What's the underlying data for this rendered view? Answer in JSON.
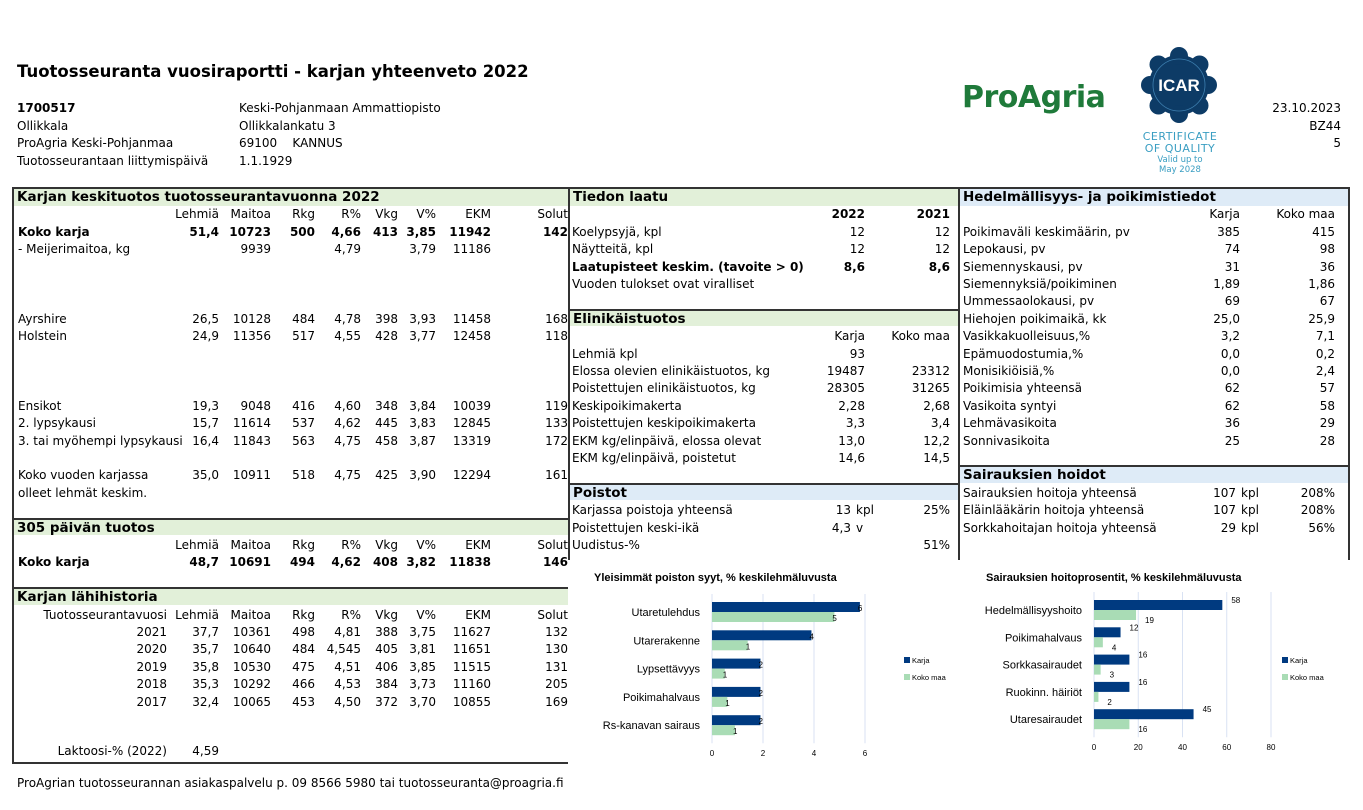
{
  "header": {
    "title": "Tuotosseuranta vuosiraportti - karjan yhteenveto 2022",
    "herd_id": "1700517",
    "farm_name": "Ollikkala",
    "organization": "ProAgria Keski-Pohjanmaa",
    "join_label": "Tuotosseurantaan liittymispäivä",
    "owner": "Keski-Pohjanmaan Ammattiopisto",
    "street": "Ollikkalankatu 3",
    "postal": "69100    KANNUS",
    "join_date": "1.1.1929",
    "date": "23.10.2023",
    "code": "BZ44",
    "page": "5",
    "logo_text": "ProAgria",
    "icar_text": "ICAR",
    "icar_cert": [
      "CERTIFICATE",
      "OF QUALITY",
      "Valid up to",
      "May 2028"
    ]
  },
  "herd_average": {
    "title": "Karjan keskituotos tuotosseurantavuonna 2022",
    "rows": [
      [
        "",
        "Lehmiä",
        "Maitoa",
        "Rkg",
        "R%",
        "Vkg",
        "V%",
        "EKM",
        "Solut"
      ],
      [
        "Koko karja",
        "51,4",
        "10723",
        "500",
        "4,66",
        "413",
        "3,85",
        "11942",
        "142"
      ],
      [
        "- Meijerimaitoa, kg",
        "",
        "9939",
        "",
        "4,79",
        "",
        "3,79",
        "11186",
        ""
      ],
      [
        "Ayrshire",
        "26,5",
        "10128",
        "484",
        "4,78",
        "398",
        "3,93",
        "11458",
        "168"
      ],
      [
        "Holstein",
        "24,9",
        "11356",
        "517",
        "4,55",
        "428",
        "3,77",
        "12458",
        "118"
      ],
      [
        "Ensikot",
        "19,3",
        "9048",
        "416",
        "4,60",
        "348",
        "3,84",
        "10039",
        "119"
      ],
      [
        "2. lypsykausi",
        "15,7",
        "11614",
        "537",
        "4,62",
        "445",
        "3,83",
        "12845",
        "133"
      ],
      [
        "3. tai myöhempi lypsykausi",
        "16,4",
        "11843",
        "563",
        "4,75",
        "458",
        "3,87",
        "13319",
        "172"
      ],
      [
        "Koko vuoden karjassa",
        "35,0",
        "10911",
        "518",
        "4,75",
        "425",
        "3,90",
        "12294",
        "161"
      ],
      [
        "olleet lehmät keskim.",
        "",
        "",
        "",
        "",
        "",
        "",
        "",
        ""
      ]
    ]
  },
  "production_305": {
    "title": "305 päivän tuotos",
    "rows": [
      [
        "",
        "Lehmiä",
        "Maitoa",
        "Rkg",
        "R%",
        "Vkg",
        "V%",
        "EKM",
        "Solut"
      ],
      [
        "Koko karja",
        "48,7",
        "10691",
        "494",
        "4,62",
        "408",
        "3,82",
        "11838",
        "146"
      ]
    ]
  },
  "history": {
    "title": "Karjan lähihistoria",
    "rows": [
      [
        "Tuotosseurantavuosi",
        "Lehmiä",
        "Maitoa",
        "Rkg",
        "R%",
        "Vkg",
        "V%",
        "EKM",
        "Solut"
      ],
      [
        "2021",
        "37,7",
        "10361",
        "498",
        "4,81",
        "388",
        "3,75",
        "11627",
        "132"
      ],
      [
        "2020",
        "35,7",
        "10640",
        "484",
        "4,545",
        "405",
        "3,81",
        "11651",
        "130"
      ],
      [
        "2019",
        "35,8",
        "10530",
        "475",
        "4,51",
        "406",
        "3,85",
        "11515",
        "131"
      ],
      [
        "2018",
        "35,3",
        "10292",
        "466",
        "4,53",
        "384",
        "3,73",
        "11160",
        "205"
      ],
      [
        "2017",
        "32,4",
        "10065",
        "453",
        "4,50",
        "372",
        "3,70",
        "10855",
        "169"
      ]
    ],
    "lactose_label": "Laktoosi-% (2022)",
    "lactose_value": "4,59"
  },
  "data_quality": {
    "title": "Tiedon laatu",
    "rows": [
      [
        "",
        "2022",
        "2021"
      ],
      [
        "Koelypsyjä, kpl",
        "12",
        "12"
      ],
      [
        "Näytteitä, kpl",
        "12",
        "12"
      ],
      [
        "Laatupisteet keskim. (tavoite > 0)",
        "8,6",
        "8,6"
      ],
      [
        "Vuoden tulokset ovat viralliset",
        "",
        ""
      ]
    ]
  },
  "lifetime": {
    "title": "Elinikäistuotos",
    "rows": [
      [
        "",
        "Karja",
        "Koko maa"
      ],
      [
        "Lehmiä kpl",
        "93",
        ""
      ],
      [
        "Elossa olevien elinikäistuotos, kg",
        "19487",
        "23312"
      ],
      [
        "Poistettujen elinikäistuotos, kg",
        "28305",
        "31265"
      ],
      [
        "Keskipoikimakerta",
        "2,28",
        "2,68"
      ],
      [
        "Poistettujen keskipoikimakerta",
        "3,3",
        "3,4"
      ],
      [
        "EKM kg/elinpäivä, elossa olevat",
        "13,0",
        "12,2"
      ],
      [
        "EKM kg/elinpäivä, poistetut",
        "14,6",
        "14,5"
      ]
    ]
  },
  "removals": {
    "title": "Poistot",
    "rows": [
      [
        "Karjassa poistoja yhteensä",
        "13",
        "kpl",
        "25%"
      ],
      [
        "Poistettujen keski-ikä",
        "4,3",
        "v",
        ""
      ],
      [
        "Uudistus-%",
        "",
        "",
        "51%"
      ]
    ]
  },
  "fertility": {
    "title": "Hedelmällisyys- ja poikimistiedot",
    "rows": [
      [
        "",
        "Karja",
        "Koko maa"
      ],
      [
        "Poikimaväli keskimäärin, pv",
        "385",
        "415"
      ],
      [
        "Lepokausi, pv",
        "74",
        "98"
      ],
      [
        "Siemennyskausi, pv",
        "31",
        "36"
      ],
      [
        "Siemennyksiä/poikiminen",
        "1,89",
        "1,86"
      ],
      [
        "Ummessaolokausi, pv",
        "69",
        "67"
      ],
      [
        "Hiehojen poikimaikä, kk",
        "25,0",
        "25,9"
      ],
      [
        "Vasikkakuolleisuus,%",
        "3,2",
        "7,1"
      ],
      [
        "Epämuodostumia,%",
        "0,0",
        "0,2"
      ],
      [
        "Monisikiöisiä,%",
        "0,0",
        "2,4"
      ],
      [
        "Poikimisia yhteensä",
        "62",
        "57"
      ],
      [
        "Vasikoita syntyi",
        "62",
        "58"
      ],
      [
        "Lehmävasikoita",
        "36",
        "29"
      ],
      [
        "Sonnivasikoita",
        "25",
        "28"
      ]
    ]
  },
  "treatments": {
    "title": "Sairauksien hoidot",
    "rows": [
      [
        "Sairauksien hoitoja yhteensä",
        "107",
        "kpl",
        "208%"
      ],
      [
        "Eläinlääkärin hoitoja yhteensä",
        "107",
        "kpl",
        "208%"
      ],
      [
        "Sorkkahoitajan hoitoja yhteensä",
        "29",
        "kpl",
        "56%"
      ]
    ]
  },
  "footer": "ProAgrian tuotosseurannan asiakaspalvelu p. 09 8566 5980 tai tuotosseuranta@proagria.fi",
  "chart_data": [
    {
      "type": "bar",
      "orientation": "horizontal",
      "title": "Yleisimmät poiston syyt, % keskilehmäluvusta",
      "categories": [
        "Utaretulehdus",
        "Utarerakenne",
        "Lypsettävyys",
        "Poikimahalvaus",
        "Rs-kanavan sairaus"
      ],
      "series": [
        {
          "name": "Karja",
          "color": "#003a80",
          "values": [
            5.8,
            3.9,
            1.9,
            1.9,
            1.9
          ],
          "labels": [
            "6",
            "4",
            "2",
            "2",
            "2"
          ]
        },
        {
          "name": "Koko maa",
          "color": "#a9dcb5",
          "values": [
            4.8,
            1.4,
            0.5,
            0.6,
            0.9
          ],
          "labels": [
            "5",
            "1",
            "1",
            "1",
            "1"
          ]
        }
      ],
      "xlim": [
        0,
        6
      ],
      "xticks": [
        "0",
        "2",
        "4",
        "6"
      ],
      "grid": true,
      "legend": "right"
    },
    {
      "type": "bar",
      "orientation": "horizontal",
      "title": "Sairauksien hoitoprosentit, % keskilehmäluvusta",
      "categories": [
        "Hedelmällisyyshoito",
        "Poikimahalvaus",
        "Sorkkasairaudet",
        "Ruokinn. häiriöt",
        "Utaresairaudet"
      ],
      "series": [
        {
          "name": "Karja",
          "color": "#003a80",
          "values": [
            58,
            12,
            16,
            16,
            45
          ],
          "labels": [
            "58",
            "12",
            "16",
            "16",
            "45"
          ]
        },
        {
          "name": "Koko maa",
          "color": "#a9dcb5",
          "values": [
            19,
            4,
            3,
            2,
            16
          ],
          "labels": [
            "19",
            "4",
            "3",
            "2",
            "16"
          ]
        }
      ],
      "xlim": [
        0,
        80
      ],
      "xticks": [
        "0",
        "20",
        "40",
        "60",
        "80"
      ],
      "grid": true,
      "legend": "right"
    }
  ]
}
